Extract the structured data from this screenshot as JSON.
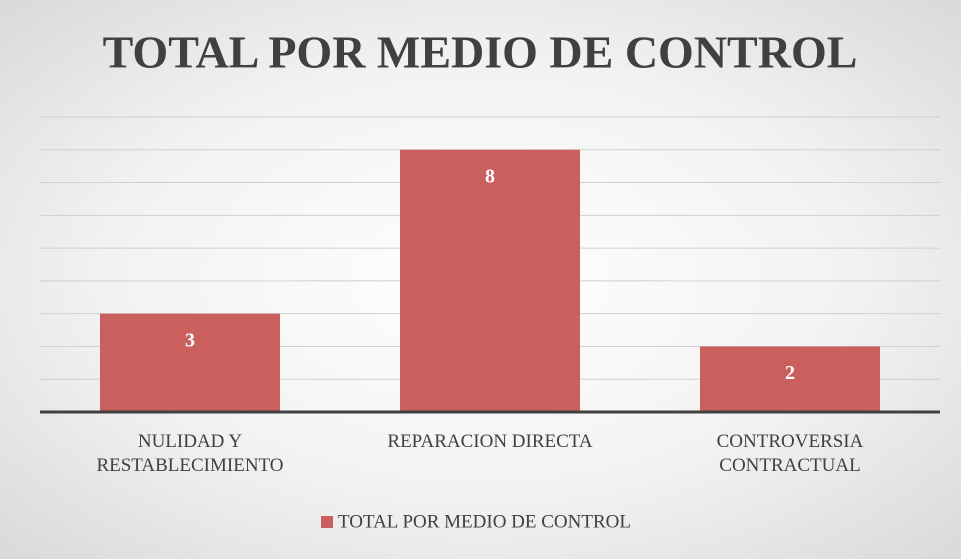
{
  "chart_data": {
    "type": "bar",
    "title": "TOTAL POR MEDIO DE CONTROL",
    "categories": [
      "NULIDAD Y RESTABLECIMIENTO",
      "REPARACION DIRECTA",
      "CONTROVERSIA CONTRACTUAL"
    ],
    "series": [
      {
        "name": "TOTAL POR MEDIO DE CONTROL",
        "color": "#c9605e",
        "values": [
          3,
          8,
          2
        ]
      }
    ],
    "ylim": [
      0,
      9
    ],
    "yticks": [
      0,
      1,
      2,
      3,
      4,
      5,
      6,
      7,
      8,
      9
    ],
    "grid": true,
    "legend": "bottom"
  }
}
